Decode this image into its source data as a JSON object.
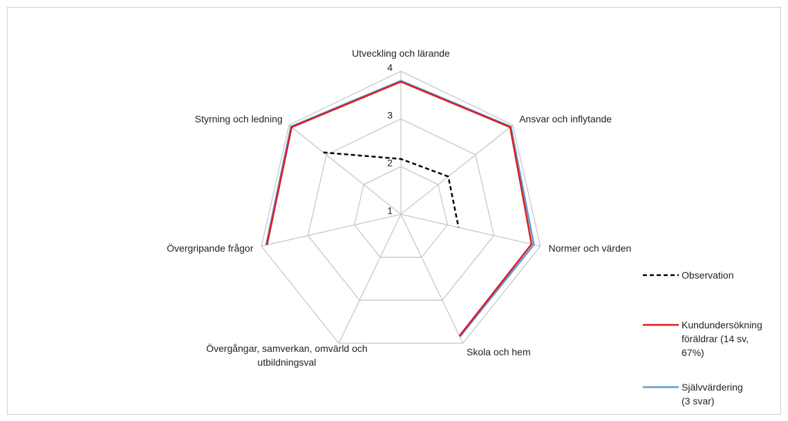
{
  "chart_data": {
    "type": "radar",
    "categories": [
      "Utveckling och lärande",
      "Ansvar och inflytande",
      "Normer och värden",
      "Skola och hem",
      "Övergångar, samverkan, omvärld och utbildningsval",
      "Övergripande frågor",
      "Styrning och ledning"
    ],
    "rlim": [
      1,
      4
    ],
    "rticks": [
      1,
      2,
      3,
      4
    ],
    "grid": true,
    "legend": "right",
    "series": [
      {
        "name": "Observation",
        "color": "#000000",
        "dash": true,
        "values": [
          2.16,
          2.27,
          2.24,
          null,
          null,
          null,
          3.08
        ]
      },
      {
        "name": "Kundundersökning föräldrar (14 sv, 67%)",
        "color": "#e0191e",
        "values": [
          3.78,
          3.93,
          3.81,
          3.83,
          null,
          3.88,
          3.93
        ]
      },
      {
        "name": "Självvärdering (3 svar)",
        "color": "#5b9bd5",
        "values": [
          3.8,
          3.95,
          3.86,
          3.85,
          null,
          3.9,
          3.95
        ]
      }
    ]
  }
}
